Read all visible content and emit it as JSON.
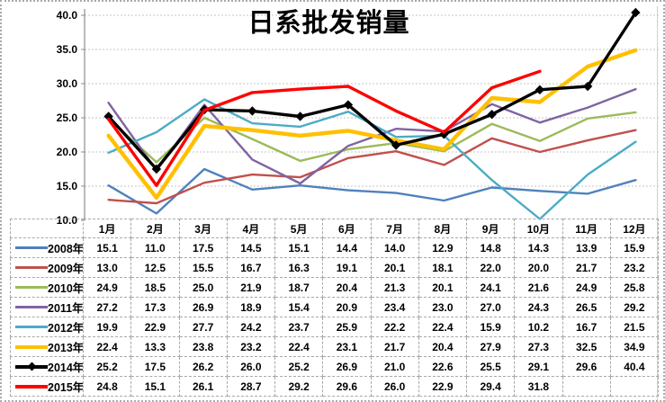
{
  "chart_data": {
    "type": "line",
    "title": "日系批发销量",
    "categories": [
      "1月",
      "2月",
      "3月",
      "4月",
      "5月",
      "6月",
      "7月",
      "8月",
      "9月",
      "10月",
      "11月",
      "12月"
    ],
    "series": [
      {
        "name": "2008年",
        "color": "#4F81BD",
        "line_width": 2.4,
        "marker": "none",
        "values": [
          15.1,
          11.0,
          17.5,
          14.5,
          15.1,
          14.4,
          14.0,
          12.9,
          14.8,
          14.3,
          13.9,
          15.9
        ]
      },
      {
        "name": "2009年",
        "color": "#C0504D",
        "line_width": 2.4,
        "marker": "none",
        "values": [
          13.0,
          12.5,
          15.5,
          16.7,
          16.3,
          19.1,
          20.1,
          18.1,
          22.0,
          20.0,
          21.7,
          23.2
        ]
      },
      {
        "name": "2010年",
        "color": "#9BBB59",
        "line_width": 2.4,
        "marker": "none",
        "values": [
          24.9,
          18.5,
          25.0,
          21.9,
          18.7,
          20.4,
          21.3,
          20.1,
          24.1,
          21.6,
          24.9,
          25.8
        ]
      },
      {
        "name": "2011年",
        "color": "#8064A2",
        "line_width": 2.4,
        "marker": "none",
        "values": [
          27.2,
          17.3,
          26.9,
          18.9,
          15.4,
          20.9,
          23.4,
          23.0,
          27.0,
          24.3,
          26.5,
          29.2
        ]
      },
      {
        "name": "2012年",
        "color": "#4BACC6",
        "line_width": 2.4,
        "marker": "none",
        "values": [
          19.9,
          22.9,
          27.7,
          24.2,
          23.7,
          25.9,
          22.2,
          22.4,
          15.9,
          10.2,
          16.7,
          21.5
        ]
      },
      {
        "name": "2013年",
        "color": "#FFC000",
        "line_width": 4.4,
        "marker": "none",
        "values": [
          22.4,
          13.3,
          23.8,
          23.2,
          22.4,
          23.1,
          21.7,
          20.4,
          27.9,
          27.3,
          32.5,
          34.9
        ]
      },
      {
        "name": "2014年",
        "color": "#000000",
        "line_width": 3.4,
        "marker": "diamond",
        "values": [
          25.2,
          17.5,
          26.2,
          26.0,
          25.2,
          26.9,
          21.0,
          22.6,
          25.5,
          29.1,
          29.6,
          40.4
        ]
      },
      {
        "name": "2015年",
        "color": "#FF0000",
        "line_width": 3.4,
        "marker": "none",
        "values": [
          24.8,
          15.1,
          26.1,
          28.7,
          29.2,
          29.6,
          26.0,
          22.9,
          29.4,
          31.8,
          null,
          null
        ]
      }
    ],
    "ylim": [
      10,
      40
    ],
    "ytick_step": 5,
    "ytick_labels": [
      "40.0",
      "35.0",
      "30.0",
      "25.0",
      "20.0",
      "15.0",
      "10.0"
    ],
    "grid": "horizontal-dotted",
    "legend_position": "data-table-left-column",
    "value_format": "one-decimal"
  }
}
